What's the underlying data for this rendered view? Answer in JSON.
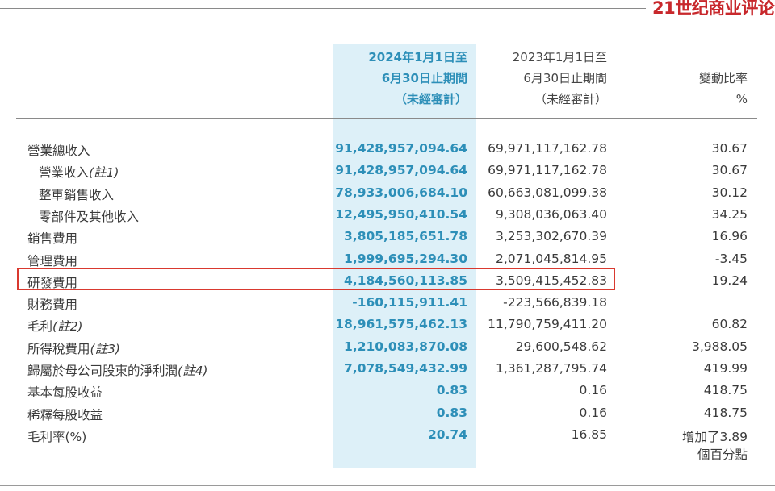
{
  "brand": {
    "logo_text": "21世纪商业评论"
  },
  "headers": {
    "current": [
      "2024年1月1日至",
      "6月30日止期間",
      "（未經審計）"
    ],
    "previous": [
      "2023年1月1日至",
      "6月30日止期間",
      "（未經審計）"
    ],
    "change": [
      "變動比率",
      "%"
    ]
  },
  "rows": [
    {
      "label": "營業總收入",
      "note": "",
      "cur": "91,428,957,094.64",
      "prev": "69,971,117,162.78",
      "chg": "30.67"
    },
    {
      "label": "營業收入",
      "note": "(註1)",
      "cur": "91,428,957,094.64",
      "prev": "69,971,117,162.78",
      "chg": "30.67"
    },
    {
      "label": "整車銷售收入",
      "note": "",
      "cur": "78,933,006,684.10",
      "prev": "60,663,081,099.38",
      "chg": "30.12"
    },
    {
      "label": "零部件及其他收入",
      "note": "",
      "cur": "12,495,950,410.54",
      "prev": "9,308,036,063.40",
      "chg": "34.25"
    },
    {
      "label": "銷售費用",
      "note": "",
      "cur": "3,805,185,651.78",
      "prev": "3,253,302,670.39",
      "chg": "16.96"
    },
    {
      "label": "管理費用",
      "note": "",
      "cur": "1,999,695,294.30",
      "prev": "2,071,045,814.95",
      "chg": "-3.45"
    },
    {
      "label": "研發費用",
      "note": "",
      "cur": "4,184,560,113.85",
      "prev": "3,509,415,452.83",
      "chg": "19.24"
    },
    {
      "label": "財務費用",
      "note": "",
      "cur": "-160,115,911.41",
      "prev": "-223,566,839.18",
      "chg": ""
    },
    {
      "label": "毛利",
      "note": "(註2)",
      "cur": "18,961,575,462.13",
      "prev": "11,790,759,411.20",
      "chg": "60.82"
    },
    {
      "label": "所得稅費用",
      "note": "(註3)",
      "cur": "1,210,083,870.08",
      "prev": "29,600,548.62",
      "chg": "3,988.05"
    },
    {
      "label": "歸屬於母公司股東的淨利潤",
      "note": "(註4)",
      "cur": "7,078,549,432.99",
      "prev": "1,361,287,795.74",
      "chg": "419.99"
    },
    {
      "label": "基本每股收益",
      "note": "",
      "cur": "0.83",
      "prev": "0.16",
      "chg": "418.75"
    },
    {
      "label": "稀釋每股收益",
      "note": "",
      "cur": "0.83",
      "prev": "0.16",
      "chg": "418.75"
    },
    {
      "label": "毛利率(%)",
      "note": "",
      "cur": "20.74",
      "prev": "16.85",
      "chg": "增加了3.89"
    }
  ],
  "gross_margin_change_extra": "個百分點",
  "highlight_color": "#d9392f",
  "accent_color": "#2d8fb8"
}
